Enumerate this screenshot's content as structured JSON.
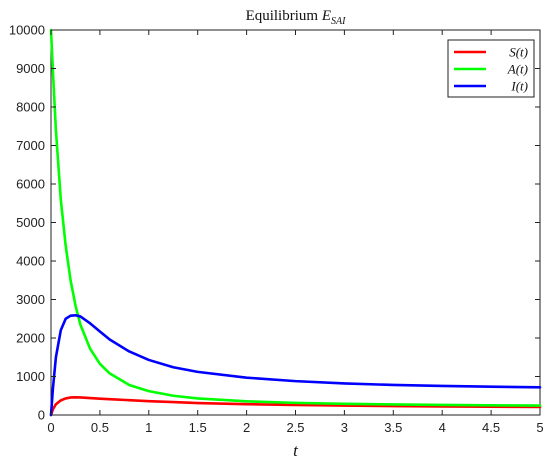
{
  "chart_data": {
    "type": "line",
    "title": "Equilibrium E_{SAI}",
    "title_main": "Equilibrium ",
    "title_symbol": "E",
    "title_subscript": "SAI",
    "xlabel": "t",
    "ylabel": "",
    "xlim": [
      0,
      5
    ],
    "ylim": [
      0,
      10000
    ],
    "x_ticks": [
      0,
      0.5,
      1,
      1.5,
      2,
      2.5,
      3,
      3.5,
      4,
      4.5,
      5
    ],
    "x_tick_labels": [
      "0",
      "0.5",
      "1",
      "1.5",
      "2",
      "2.5",
      "3",
      "3.5",
      "4",
      "4.5",
      "5"
    ],
    "y_ticks": [
      0,
      1000,
      2000,
      3000,
      4000,
      5000,
      6000,
      7000,
      8000,
      9000,
      10000
    ],
    "y_tick_labels": [
      "0",
      "1000",
      "2000",
      "3000",
      "4000",
      "5000",
      "6000",
      "7000",
      "8000",
      "9000",
      "10000"
    ],
    "grid": false,
    "legend_position": "top-right",
    "x": [
      0,
      0.02,
      0.05,
      0.1,
      0.15,
      0.2,
      0.25,
      0.3,
      0.4,
      0.5,
      0.6,
      0.8,
      1,
      1.25,
      1.5,
      2,
      2.5,
      3,
      3.5,
      4,
      4.5,
      5
    ],
    "series": [
      {
        "name": "S(t)",
        "color": "#ff0000",
        "values": [
          0,
          150,
          280,
          380,
          430,
          455,
          460,
          455,
          440,
          425,
          410,
          385,
          360,
          335,
          310,
          280,
          260,
          245,
          232,
          222,
          215,
          210
        ]
      },
      {
        "name": "A(t)",
        "color": "#00ff00",
        "values": [
          10000,
          8900,
          7400,
          5600,
          4400,
          3500,
          2850,
          2350,
          1720,
          1330,
          1080,
          780,
          620,
          500,
          430,
          355,
          315,
          290,
          275,
          262,
          252,
          245
        ]
      },
      {
        "name": "I(t)",
        "color": "#0000ff",
        "values": [
          0,
          700,
          1500,
          2200,
          2500,
          2580,
          2590,
          2560,
          2380,
          2170,
          1960,
          1650,
          1430,
          1240,
          1120,
          970,
          880,
          820,
          780,
          755,
          735,
          720
        ]
      }
    ]
  }
}
